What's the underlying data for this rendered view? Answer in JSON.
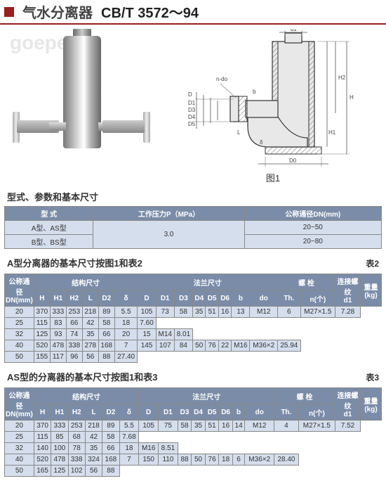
{
  "header": {
    "title_cn": "气水分离器",
    "title_std": "CB/T 3572～94",
    "watermark": "goepe"
  },
  "diagram": {
    "caption": "图1",
    "dims": [
      "d1",
      "D",
      "D0",
      "D1",
      "D2",
      "D3",
      "D4",
      "D5",
      "H",
      "H1",
      "H2",
      "L",
      "n-do",
      "δ",
      "b"
    ]
  },
  "section_params": "型式、参数和基本尺寸",
  "table1": {
    "headers": [
      "型 式",
      "工作压力P（MPa）",
      "公称通径DN(mm)"
    ],
    "rows": [
      [
        "A型、AS型",
        "3.0",
        "20~50"
      ],
      [
        "B型、BS型",
        "",
        "20~80"
      ]
    ]
  },
  "section2": {
    "title": "A型分离器的基本尺寸按图1和表2",
    "label": "表2"
  },
  "table2": {
    "group_headers": [
      {
        "label": "公称通径DN(mm)",
        "span": 1
      },
      {
        "label": "结构尺寸",
        "span": 6
      },
      {
        "label": "法兰尺寸",
        "span": 8
      },
      {
        "label": "螺 栓",
        "span": 2
      },
      {
        "label": "连接螺纹d1",
        "span": 1
      },
      {
        "label": "重量(kg)",
        "span": 1
      }
    ],
    "sub_headers": [
      "",
      "H",
      "H1",
      "H2",
      "L",
      "D2",
      "δ",
      "D",
      "D1",
      "D3",
      "D4",
      "D5",
      "D6",
      "b",
      "do",
      "Th.",
      "n(个)",
      "",
      ""
    ],
    "rows": [
      [
        "20",
        "370",
        "333",
        "253",
        "218",
        "89",
        "5.5",
        "105",
        "73",
        "58",
        "35",
        "51",
        "16",
        "13",
        "M12",
        "6",
        "M27×1.5",
        "7.28"
      ],
      [
        "25",
        "",
        "",
        "",
        "",
        "",
        "",
        "115",
        "83",
        "66",
        "42",
        "58",
        "18",
        "",
        "",
        "",
        "",
        "7.60"
      ],
      [
        "32",
        "",
        "",
        "",
        "",
        "",
        "",
        "125",
        "93",
        "74",
        "35",
        "66",
        "20",
        "15",
        "M14",
        "",
        "",
        "8.01"
      ],
      [
        "40",
        "520",
        "478",
        "338",
        "278",
        "168",
        "7",
        "145",
        "107",
        "84",
        "50",
        "76",
        "22",
        "",
        "M16",
        "",
        "M36×2",
        "25.94"
      ],
      [
        "50",
        "",
        "",
        "",
        "",
        "",
        "",
        "155",
        "117",
        "96",
        "56",
        "88",
        "",
        "",
        "",
        "",
        "",
        "27.40"
      ]
    ]
  },
  "section3": {
    "title": "AS型的分离器的基本尺寸按图1和表3",
    "label": "表3"
  },
  "table3": {
    "rows": [
      [
        "20",
        "370",
        "333",
        "253",
        "218",
        "89",
        "5.5",
        "105",
        "75",
        "58",
        "35",
        "51",
        "16",
        "14",
        "M12",
        "4",
        "M27×1.5",
        "7.52"
      ],
      [
        "25",
        "",
        "",
        "",
        "",
        "",
        "",
        "115",
        "85",
        "68",
        "42",
        "58",
        "",
        "",
        "",
        "",
        "",
        "7.68"
      ],
      [
        "32",
        "",
        "",
        "",
        "",
        "",
        "",
        "140",
        "100",
        "78",
        "35",
        "66",
        "18",
        "",
        "M16",
        "",
        "",
        "8.51"
      ],
      [
        "40",
        "520",
        "478",
        "338",
        "324",
        "168",
        "7",
        "150",
        "110",
        "88",
        "50",
        "76",
        "",
        "18",
        "",
        "6",
        "M36×2",
        "28.40"
      ],
      [
        "50",
        "",
        "",
        "",
        "",
        "",
        "",
        "165",
        "125",
        "102",
        "56",
        "88",
        "",
        "",
        "",
        "",
        "",
        ""
      ]
    ]
  }
}
